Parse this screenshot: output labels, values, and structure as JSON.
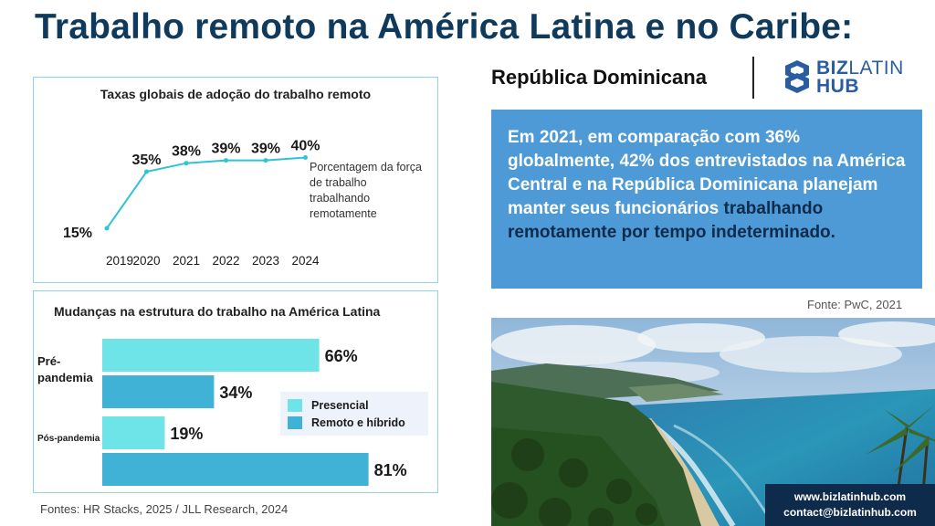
{
  "title": "Trabalho remoto na América Latina e no Caribe:",
  "country": "República Dominicana",
  "logo": {
    "line1_bold": "BIZ",
    "line1_light": "LATIN",
    "line2": "HUB"
  },
  "chart1": {
    "title": "Taxas globais de adoção do trabalho remoto",
    "annotation": "Porcentagem da força de trabalho trabalhando remotamente"
  },
  "chart2": {
    "title": "Mudanças na estrutura do trabalho na América Latina",
    "legend": [
      {
        "label": "Presencial",
        "color": "#6ee3e8"
      },
      {
        "label": "Remoto e híbrido",
        "color": "#3fb2d6"
      }
    ]
  },
  "chart_data": [
    {
      "type": "line",
      "title": "Taxas globais de adoção do trabalho remoto",
      "x": [
        "2019",
        "2020",
        "2021",
        "2022",
        "2023",
        "2024"
      ],
      "values": [
        15,
        35,
        38,
        39,
        39,
        40
      ],
      "value_labels": [
        "15%",
        "35%",
        "38%",
        "39%",
        "39%",
        "40%"
      ],
      "ylim": [
        0,
        45
      ],
      "color": "#2fc3d3",
      "grid": false
    },
    {
      "type": "bar",
      "orientation": "horizontal",
      "title": "Mudanças na estrutura do trabalho na América Latina",
      "categories": [
        "Pré-pandemia",
        "Pós-pandemia"
      ],
      "series": [
        {
          "name": "Presencial",
          "values": [
            66,
            19
          ],
          "value_labels": [
            "66%",
            "19%"
          ],
          "color": "#6ee3e8"
        },
        {
          "name": "Remoto e híbrido",
          "values": [
            34,
            81
          ],
          "value_labels": [
            "34%",
            "81%"
          ],
          "color": "#3fb2d6"
        }
      ],
      "xlim": [
        0,
        100
      ],
      "legend_position": "right"
    }
  ],
  "sources": "Fontes: HR Stacks, 2025 / JLL Research, 2024",
  "stat": {
    "text_plain": "Em 2021, em comparação com 36% globalmente, 42% dos entrevistados na América Central e na República Dominicana planejam manter seus funcionários ",
    "text_highlight": "trabalhando remotamente por tempo indeterminado."
  },
  "fonte": "Fonte: PwC, 2021",
  "contact": {
    "website": "www.bizlatinhub.com",
    "email": "contact@bizlatinhub.com"
  }
}
